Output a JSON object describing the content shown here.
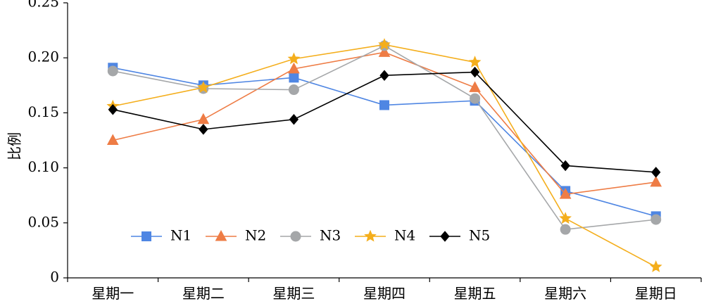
{
  "chart_data": {
    "type": "line",
    "title": "",
    "xlabel": "",
    "ylabel": "比例",
    "categories": [
      "星期一",
      "星期二",
      "星期三",
      "星期四",
      "星期五",
      "星期六",
      "星期日"
    ],
    "yticks": [
      "0",
      "0.05",
      "0.10",
      "0.15",
      "0.20",
      "0.25"
    ],
    "ylim": [
      0,
      0.25
    ],
    "grid": false,
    "legend_position": "bottom-left",
    "series": [
      {
        "name": "N1",
        "color": "#4f86e3",
        "marker": "square",
        "values": [
          0.191,
          0.175,
          0.182,
          0.157,
          0.161,
          0.079,
          0.056
        ]
      },
      {
        "name": "N2",
        "color": "#ee7c45",
        "marker": "triangle",
        "values": [
          0.125,
          0.144,
          0.19,
          0.205,
          0.173,
          0.076,
          0.087
        ]
      },
      {
        "name": "N3",
        "color": "#a5a7a9",
        "marker": "circle",
        "values": [
          0.188,
          0.172,
          0.171,
          0.211,
          0.163,
          0.044,
          0.053
        ]
      },
      {
        "name": "N4",
        "color": "#f4ae1c",
        "marker": "star",
        "values": [
          0.156,
          0.173,
          0.199,
          0.212,
          0.196,
          0.054,
          0.01
        ]
      },
      {
        "name": "N5",
        "color": "#000000",
        "marker": "diamond",
        "values": [
          0.153,
          0.135,
          0.144,
          0.184,
          0.187,
          0.102,
          0.096
        ]
      }
    ]
  }
}
